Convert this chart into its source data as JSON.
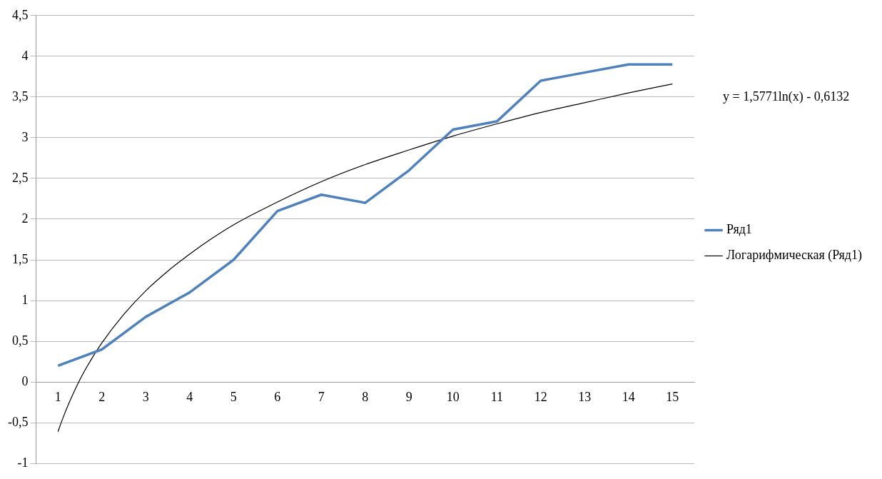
{
  "chart_data": {
    "type": "line",
    "x": [
      1,
      2,
      3,
      4,
      5,
      6,
      7,
      8,
      9,
      10,
      11,
      12,
      13,
      14,
      15
    ],
    "series": [
      {
        "name": "Ряд1",
        "color": "#4f81bd",
        "values": [
          0.2,
          0.4,
          0.8,
          1.1,
          1.5,
          2.1,
          2.3,
          2.2,
          2.6,
          3.1,
          3.2,
          3.7,
          3.8,
          3.9,
          3.9
        ]
      },
      {
        "name": "Логарифмическая (Ряд1)",
        "color": "#000000",
        "x": [
          1,
          1.1,
          1.25,
          1.5,
          1.75,
          2,
          2.5,
          3,
          3.5,
          4,
          4.5,
          5,
          6,
          7,
          8,
          9,
          10,
          11,
          12,
          13,
          14,
          15
        ],
        "values": [
          -0.61,
          -0.46,
          -0.26,
          0.03,
          0.27,
          0.48,
          0.83,
          1.12,
          1.36,
          1.57,
          1.76,
          1.93,
          2.21,
          2.46,
          2.67,
          2.85,
          3.02,
          3.17,
          3.31,
          3.43,
          3.55,
          3.66
        ]
      }
    ],
    "xlim": [
      0.5,
      15.5
    ],
    "xticks": [
      1,
      2,
      3,
      4,
      5,
      6,
      7,
      8,
      9,
      10,
      11,
      12,
      13,
      14,
      15
    ],
    "ylim": [
      -1,
      4.5
    ],
    "yticks": [
      -1,
      {
        "value": -0.5,
        "label": "-0,5"
      },
      0,
      {
        "value": 0.5,
        "label": "0,5"
      },
      1,
      {
        "value": 1.5,
        "label": "1,5"
      },
      2,
      {
        "value": 2.5,
        "label": "2,5"
      },
      3,
      {
        "value": 3.5,
        "label": "3,5"
      },
      4,
      {
        "value": 4.5,
        "label": "4,5"
      }
    ],
    "grid": "y",
    "legend": "right",
    "marker": "none",
    "line_style": "solid",
    "annotations": [
      "y = 1,5771ln(x) - 0,6132"
    ]
  }
}
